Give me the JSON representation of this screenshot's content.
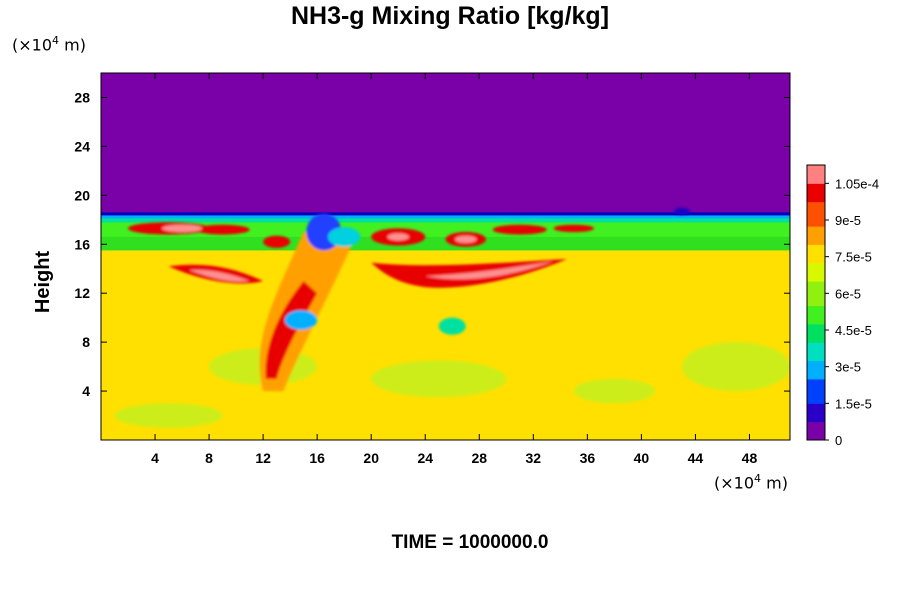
{
  "chart_data": {
    "type": "heatmap",
    "title": "NH3-g Mixing Ratio [kg/kg]",
    "ylabel": "Height",
    "xlabel": "",
    "x_unit": "(×10⁴ m)",
    "y_unit": "(×10⁴ m)",
    "footer": "TIME = 1000000.0",
    "xlim": [
      0,
      51
    ],
    "ylim": [
      0,
      30
    ],
    "x_ticks": [
      "4",
      "8",
      "12",
      "16",
      "20",
      "24",
      "28",
      "32",
      "36",
      "40",
      "44",
      "48"
    ],
    "y_ticks": [
      "4",
      "8",
      "12",
      "16",
      "20",
      "24",
      "28"
    ],
    "colorbar": {
      "min": 0,
      "max": 0.0001125,
      "ticks": [
        "0",
        "1.5e-5",
        "3e-5",
        "4.5e-5",
        "6e-5",
        "7.5e-5",
        "9e-5",
        "1.05e-4"
      ],
      "tick_values": [
        0,
        1.5e-05,
        3e-05,
        4.5e-05,
        6e-05,
        7.5e-05,
        9e-05,
        0.000105
      ],
      "colors": [
        "#7a00a8",
        "#2a00c8",
        "#0040ff",
        "#00b0ff",
        "#00e0c0",
        "#00e060",
        "#40f020",
        "#90f010",
        "#d8f800",
        "#ffe000",
        "#ffa000",
        "#ff5000",
        "#e80000",
        "#ff8080"
      ]
    },
    "fields": {
      "upper_region_value": 0,
      "lower_region_value": 7.8e-05,
      "band_value": 5e-05,
      "band_top_height": 18.5,
      "band_bottom_height": 15.5
    }
  }
}
